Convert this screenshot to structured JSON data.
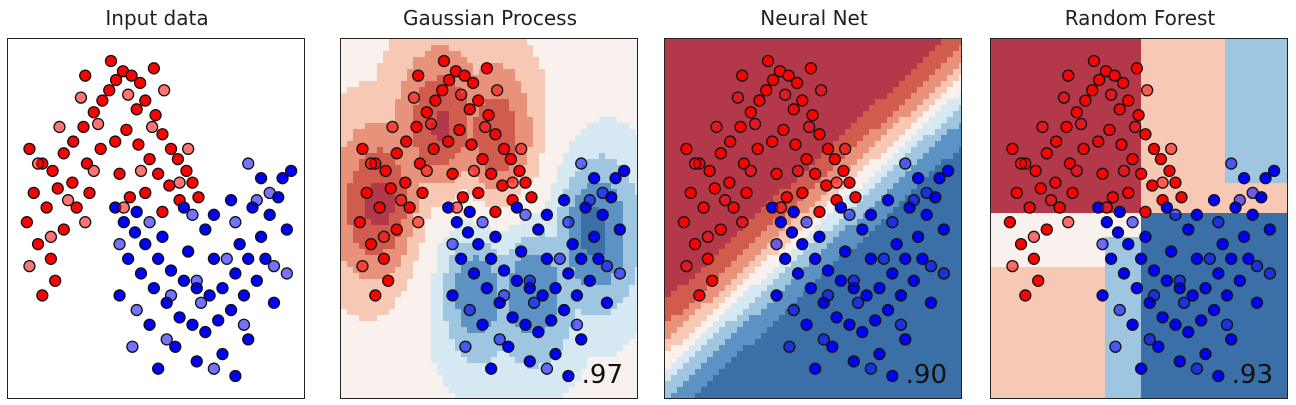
{
  "chart_data": [
    {
      "type": "scatter",
      "title": "Input data",
      "score": "",
      "background": "none",
      "colors": {
        "red": "#ff0000",
        "blue": "#0000ff"
      }
    },
    {
      "type": "scatter",
      "title": "Gaussian Process",
      "score": ".97",
      "background": "smooth-decision-boundary"
    },
    {
      "type": "scatter",
      "title": "Neural Net",
      "score": ".90",
      "background": "diagonal-decision-boundary"
    },
    {
      "type": "scatter",
      "title": "Random Forest",
      "score": ".93",
      "background": "axis-aligned-decision-boundary"
    }
  ],
  "points": {
    "train_red": [
      [
        -0.95,
        0.45
      ],
      [
        -0.8,
        0.35
      ],
      [
        -0.68,
        0.3
      ],
      [
        -0.55,
        0.42
      ],
      [
        -0.44,
        0.5
      ],
      [
        -0.32,
        0.6
      ],
      [
        -0.2,
        0.7
      ],
      [
        -0.1,
        0.78
      ],
      [
        -0.02,
        0.85
      ],
      [
        0.06,
        0.92
      ],
      [
        0.14,
        0.98
      ],
      [
        0.24,
        0.95
      ],
      [
        0.34,
        0.9
      ],
      [
        0.4,
        0.78
      ],
      [
        0.3,
        0.72
      ],
      [
        0.52,
        0.68
      ],
      [
        0.6,
        0.55
      ],
      [
        0.7,
        0.45
      ],
      [
        0.78,
        0.38
      ],
      [
        0.88,
        0.3
      ],
      [
        0.95,
        0.22
      ],
      [
        1.02,
        0.12
      ],
      [
        -0.9,
        0.15
      ],
      [
        -0.75,
        0.05
      ],
      [
        -0.62,
        0.18
      ],
      [
        -0.45,
        0.22
      ],
      [
        -0.28,
        0.35
      ],
      [
        -0.12,
        0.45
      ],
      [
        0.05,
        0.5
      ],
      [
        0.18,
        0.58
      ],
      [
        0.32,
        0.48
      ],
      [
        0.45,
        0.38
      ],
      [
        0.55,
        0.28
      ],
      [
        0.68,
        0.2
      ],
      [
        0.8,
        0.1
      ],
      [
        -0.98,
        -0.05
      ],
      [
        -0.85,
        -0.2
      ],
      [
        -0.7,
        -0.3
      ],
      [
        -0.55,
        -0.1
      ],
      [
        -0.4,
        0.05
      ],
      [
        -0.25,
        0.15
      ],
      [
        0.1,
        0.28
      ],
      [
        0.22,
        0.12
      ],
      [
        0.4,
        0.15
      ],
      [
        0.6,
        0.02
      ],
      [
        -0.65,
        -0.45
      ],
      [
        -0.8,
        -0.55
      ],
      [
        0.0,
        1.05
      ],
      [
        -0.3,
        0.95
      ],
      [
        0.5,
        1.0
      ]
    ],
    "train_blue": [
      [
        0.05,
        0.05
      ],
      [
        0.15,
        -0.05
      ],
      [
        0.28,
        -0.12
      ],
      [
        0.4,
        -0.2
      ],
      [
        0.55,
        -0.3
      ],
      [
        0.7,
        -0.38
      ],
      [
        0.85,
        -0.45
      ],
      [
        1.0,
        -0.5
      ],
      [
        1.15,
        -0.55
      ],
      [
        1.3,
        -0.5
      ],
      [
        1.45,
        -0.4
      ],
      [
        1.6,
        -0.3
      ],
      [
        1.75,
        -0.15
      ],
      [
        1.85,
        0.0
      ],
      [
        1.95,
        0.12
      ],
      [
        2.0,
        0.25
      ],
      [
        0.2,
        -0.3
      ],
      [
        0.35,
        -0.4
      ],
      [
        0.5,
        -0.5
      ],
      [
        0.65,
        -0.6
      ],
      [
        0.8,
        -0.7
      ],
      [
        0.95,
        -0.75
      ],
      [
        1.1,
        -0.8
      ],
      [
        1.25,
        -0.72
      ],
      [
        1.4,
        -0.65
      ],
      [
        1.55,
        -0.55
      ],
      [
        1.7,
        -0.45
      ],
      [
        1.8,
        -0.3
      ],
      [
        0.3,
        0.02
      ],
      [
        0.6,
        -0.15
      ],
      [
        0.9,
        -0.25
      ],
      [
        1.2,
        -0.3
      ],
      [
        1.5,
        -0.2
      ],
      [
        1.65,
        0.05
      ],
      [
        1.4,
        0.1
      ],
      [
        1.1,
        -0.1
      ],
      [
        0.75,
        -0.9
      ],
      [
        1.0,
        -1.0
      ],
      [
        1.3,
        -0.95
      ],
      [
        0.45,
        -0.75
      ],
      [
        1.9,
        -0.6
      ],
      [
        2.05,
        -0.1
      ],
      [
        0.1,
        -0.55
      ],
      [
        1.6,
        -0.85
      ],
      [
        0.85,
        0.05
      ],
      [
        1.75,
        0.25
      ],
      [
        1.2,
        0.0
      ],
      [
        0.55,
        -1.05
      ],
      [
        1.45,
        -1.1
      ],
      [
        2.1,
        0.3
      ]
    ],
    "test_red": [
      [
        -0.6,
        0.6
      ],
      [
        -0.35,
        0.8
      ],
      [
        -0.15,
        0.62
      ],
      [
        0.2,
        0.82
      ],
      [
        0.62,
        0.85
      ],
      [
        -0.85,
        0.35
      ],
      [
        -0.5,
        0.1
      ],
      [
        0.35,
        0.3
      ],
      [
        -0.7,
        -0.15
      ],
      [
        0.8,
        0.22
      ],
      [
        -0.3,
        -0.05
      ],
      [
        0.48,
        0.6
      ],
      [
        -0.95,
        -0.35
      ],
      [
        0.15,
        0.05
      ],
      [
        0.9,
        0.45
      ],
      [
        -0.2,
        0.3
      ]
    ],
    "test_blue": [
      [
        0.1,
        -0.2
      ],
      [
        0.45,
        -0.05
      ],
      [
        0.7,
        -0.55
      ],
      [
        1.05,
        -0.6
      ],
      [
        1.35,
        -0.3
      ],
      [
        1.7,
        0.1
      ],
      [
        1.9,
        -0.35
      ],
      [
        0.3,
        -0.65
      ],
      [
        1.0,
        -0.45
      ],
      [
        1.55,
        -0.75
      ],
      [
        0.65,
        -0.85
      ],
      [
        1.2,
        -1.05
      ],
      [
        1.85,
        0.15
      ],
      [
        2.05,
        -0.4
      ],
      [
        0.95,
        0.0
      ],
      [
        1.6,
        0.35
      ],
      [
        0.25,
        -0.9
      ],
      [
        1.45,
        -0.05
      ]
    ]
  }
}
